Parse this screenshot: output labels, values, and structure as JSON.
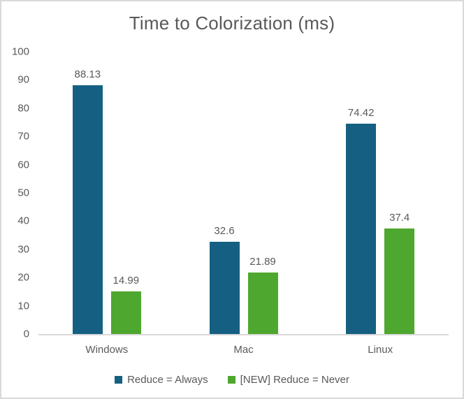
{
  "chart_data": {
    "type": "bar",
    "title": "Time to Colorization (ms)",
    "categories": [
      "Windows",
      "Mac",
      "Linux"
    ],
    "series": [
      {
        "name": "Reduce = Always",
        "color": "#156082",
        "values": [
          88.13,
          32.6,
          74.42
        ]
      },
      {
        "name": "[NEW] Reduce = Never",
        "color": "#4EA72E",
        "values": [
          14.99,
          21.89,
          37.4
        ]
      }
    ],
    "xlabel": "",
    "ylabel": "",
    "ylim": [
      0,
      100
    ],
    "yticks": [
      0,
      10,
      20,
      30,
      40,
      50,
      60,
      70,
      80,
      90,
      100
    ],
    "grid": false,
    "data_labels_shown": true,
    "legend_position": "bottom"
  },
  "colors": {
    "title_text": "#595959",
    "axis_text": "#595959",
    "data_label_text": "#595959",
    "axis_line": "#d9d9d9",
    "frame_border": "#d9d9d9",
    "background": "#ffffff"
  }
}
